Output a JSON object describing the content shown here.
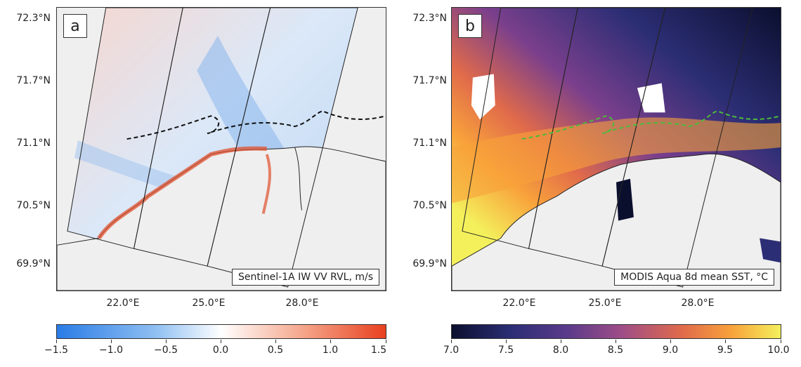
{
  "panel_a": {
    "letter": "a",
    "caption": "Sentinel-1A IW VV RVL, m/s",
    "lat_labels": [
      "72.3°N",
      "71.7°N",
      "71.1°N",
      "70.5°N",
      "69.9°N"
    ],
    "lon_labels": [
      "22.0°E",
      "25.0°E",
      "28.0°E"
    ],
    "colorbar": {
      "ticks": [
        "−1.5",
        "−1.0",
        "−0.5",
        "0.0",
        "0.5",
        "1.0",
        "1.5"
      ],
      "min": -1.5,
      "max": 1.5,
      "colors": [
        "#2a7ce6",
        "#ffffff",
        "#e8401f"
      ]
    }
  },
  "panel_b": {
    "letter": "b",
    "caption": "MODIS Aqua 8d mean SST, °C",
    "lat_labels": [
      "72.3°N",
      "71.7°N",
      "71.1°N",
      "70.5°N",
      "69.9°N"
    ],
    "lon_labels": [
      "22.0°E",
      "25.0°E",
      "28.0°E"
    ],
    "colorbar": {
      "ticks": [
        "7.0",
        "7.5",
        "8.0",
        "8.5",
        "9.0",
        "9.5",
        "10.0"
      ],
      "min": 7.0,
      "max": 10.0,
      "colors": [
        "#0b0f2e",
        "#5a3a8a",
        "#e06a4b",
        "#f4f05c"
      ]
    }
  }
}
